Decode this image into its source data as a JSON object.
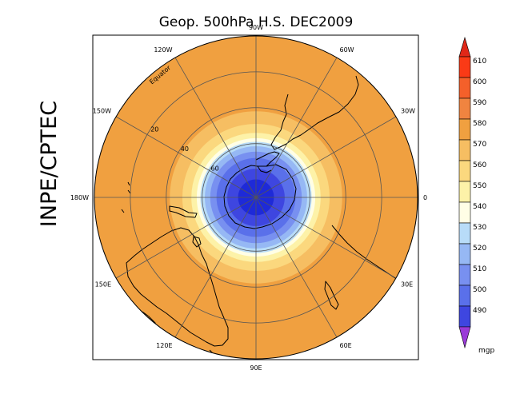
{
  "map": {
    "title": "Geop. 500hPa H.S. DEC2009",
    "side_label": "INPE/CPTEC",
    "longitude_labels": [
      {
        "text": "90W",
        "lon": 90
      },
      {
        "text": "60W",
        "lon": 60
      },
      {
        "text": "30W",
        "lon": 30
      },
      {
        "text": "0",
        "lon": 0
      },
      {
        "text": "30E",
        "lon": -30
      },
      {
        "text": "60E",
        "lon": -60
      },
      {
        "text": "90E",
        "lon": -90
      },
      {
        "text": "120E",
        "lon": -120
      },
      {
        "text": "150E",
        "lon": -150
      },
      {
        "text": "180W",
        "lon": 180
      },
      {
        "text": "150W",
        "lon": 150
      },
      {
        "text": "120W",
        "lon": 120
      }
    ],
    "latitude_labels": [
      {
        "text": "Equator",
        "lat": 0
      },
      {
        "text": "20",
        "lat": 20
      },
      {
        "text": "40",
        "lat": 40
      },
      {
        "text": "60",
        "lat": 60
      }
    ],
    "field_levels": [
      {
        "colat": 90,
        "color": "#f0a040"
      },
      {
        "colat": 48,
        "color": "#f6be62"
      },
      {
        "colat": 41,
        "color": "#fbd87e"
      },
      {
        "colat": 36,
        "color": "#fdf2a8"
      },
      {
        "colat": 33,
        "color": "#fffee6"
      },
      {
        "colat": 31,
        "color": "#b8dcf8"
      },
      {
        "colat": 28.5,
        "color": "#96b8f4"
      },
      {
        "colat": 25.5,
        "color": "#7890f0"
      },
      {
        "colat": 22,
        "color": "#5a70ea"
      },
      {
        "colat": 16,
        "color": "#3e46e0"
      }
    ]
  },
  "colorbar": {
    "unit": "mgp",
    "levels": [
      {
        "label": "610",
        "color": "#fa3a16"
      },
      {
        "label": "600",
        "color": "#f4602a"
      },
      {
        "label": "590",
        "color": "#f08440"
      },
      {
        "label": "580",
        "color": "#f0a040"
      },
      {
        "label": "570",
        "color": "#f6be62"
      },
      {
        "label": "560",
        "color": "#fbd87e"
      },
      {
        "label": "550",
        "color": "#fdf2a8"
      },
      {
        "label": "540",
        "color": "#fffee6"
      },
      {
        "label": "530",
        "color": "#b8dcf8"
      },
      {
        "label": "520",
        "color": "#96b8f4"
      },
      {
        "label": "510",
        "color": "#7890f0"
      },
      {
        "label": "500",
        "color": "#5a70ea"
      },
      {
        "label": "490",
        "color": "#3e46e0"
      }
    ],
    "top_color": "#e02818",
    "bottom_color": "#9a3ad8",
    "last_box_color": "#1e2ad8"
  }
}
